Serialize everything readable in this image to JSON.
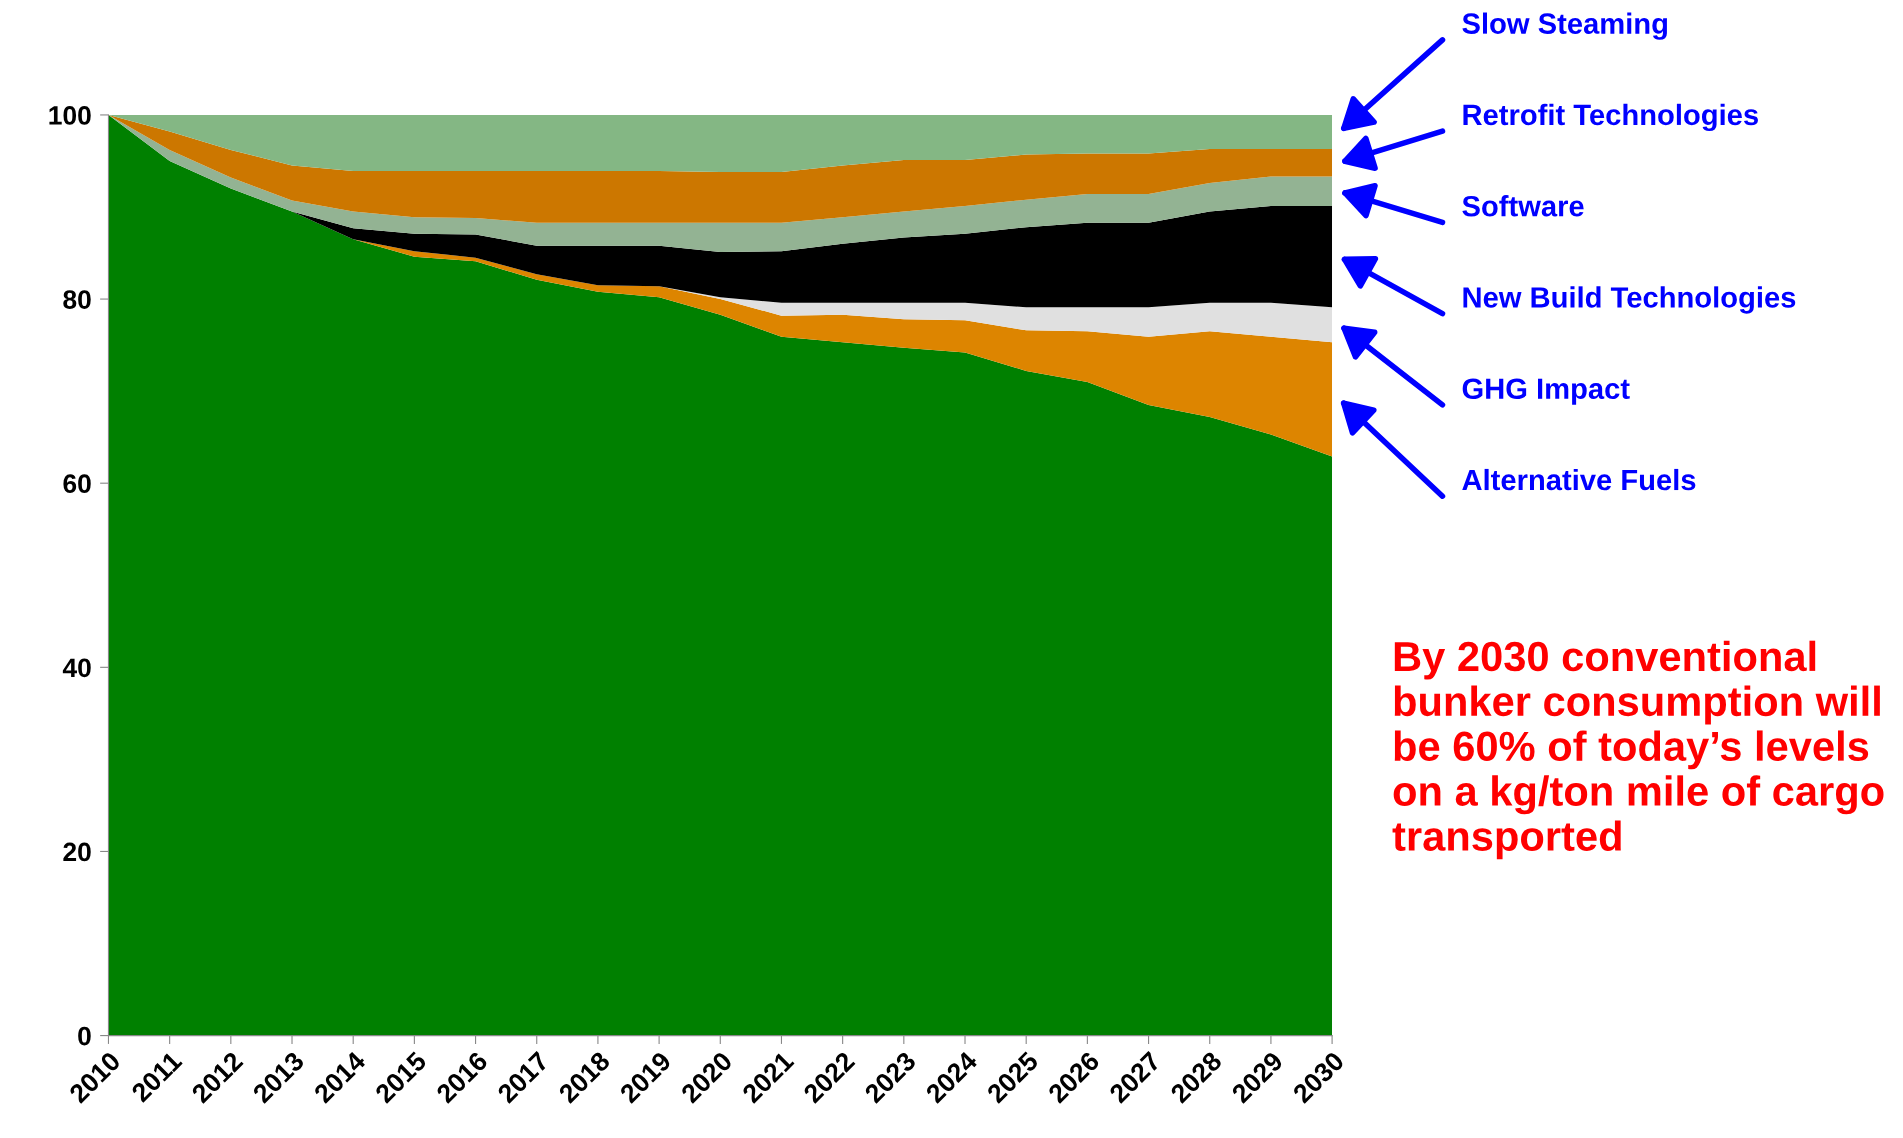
{
  "chart_data": {
    "type": "area",
    "stacked": true,
    "x": [
      2010,
      2011,
      2012,
      2013,
      2014,
      2015,
      2016,
      2017,
      2018,
      2019,
      2020,
      2021,
      2022,
      2023,
      2024,
      2025,
      2026,
      2027,
      2028,
      2029,
      2030
    ],
    "series": [
      {
        "color": "#008000",
        "values": [
          100,
          95.0,
          92.0,
          89.5,
          86.5,
          84.6,
          84.1,
          82.1,
          80.8,
          80.2,
          78.3,
          75.9,
          75.3,
          74.7,
          74.2,
          72.2,
          71.0,
          68.5,
          67.2,
          65.3,
          62.9
        ]
      },
      {
        "name": "Alternative Fuels",
        "color": "#DD8500",
        "values": [
          0,
          0,
          0,
          0,
          0,
          0.6,
          0.4,
          0.6,
          0.7,
          1.2,
          1.7,
          2.3,
          3.0,
          3.1,
          3.5,
          4.4,
          5.5,
          7.4,
          9.3,
          10.6,
          12.4
        ]
      },
      {
        "name": "GHG Impact",
        "color": "#E0E0E0",
        "values": [
          0,
          0,
          0,
          0,
          0,
          0,
          0,
          0,
          0,
          0,
          0.2,
          1.4,
          1.3,
          1.8,
          1.9,
          2.5,
          2.6,
          3.2,
          3.1,
          3.7,
          3.8
        ]
      },
      {
        "name": "New Build Technologies",
        "color": "#000000",
        "values": [
          0,
          0,
          0,
          0,
          1.2,
          1.9,
          2.5,
          3.1,
          4.3,
          4.4,
          4.9,
          5.6,
          6.4,
          7.1,
          7.5,
          8.7,
          9.2,
          9.2,
          9.9,
          10.5,
          11.0
        ]
      },
      {
        "name": "Software",
        "color": "#93B393",
        "values": [
          0,
          1.2,
          1.2,
          1.2,
          1.8,
          1.8,
          1.8,
          2.5,
          2.5,
          2.5,
          3.2,
          3.1,
          2.9,
          2.8,
          3.0,
          3.0,
          3.1,
          3.1,
          3.1,
          3.2,
          3.2
        ]
      },
      {
        "name": "Retrofit Technologies",
        "color": "#CC7700",
        "values": [
          0,
          2.0,
          3.0,
          3.8,
          4.4,
          5.0,
          5.1,
          5.6,
          5.6,
          5.6,
          5.5,
          5.5,
          5.6,
          5.6,
          5.0,
          4.9,
          4.4,
          4.4,
          3.7,
          3.0,
          3.0
        ]
      },
      {
        "name": "Slow Steaming",
        "color": "#84B784",
        "values": [
          0,
          1.8,
          3.8,
          5.5,
          6.1,
          6.1,
          6.1,
          6.1,
          6.1,
          6.1,
          6.2,
          6.2,
          5.5,
          4.9,
          4.9,
          4.3,
          4.2,
          4.2,
          3.7,
          3.7,
          3.7
        ]
      }
    ],
    "xlim": [
      2010,
      2030
    ],
    "xticks": [
      2010,
      2011,
      2012,
      2013,
      2014,
      2015,
      2016,
      2017,
      2018,
      2019,
      2020,
      2021,
      2022,
      2023,
      2024,
      2025,
      2026,
      2027,
      2028,
      2029,
      2030
    ],
    "ylim": [
      0,
      100
    ],
    "yticks": [
      0,
      20,
      40,
      60,
      80,
      100
    ],
    "grid": false,
    "legend": false,
    "annotations": [
      "By 2030 conventional bunker consumption will be 60% of today’s levels on a kg/ton mile of cargo transported"
    ]
  }
}
